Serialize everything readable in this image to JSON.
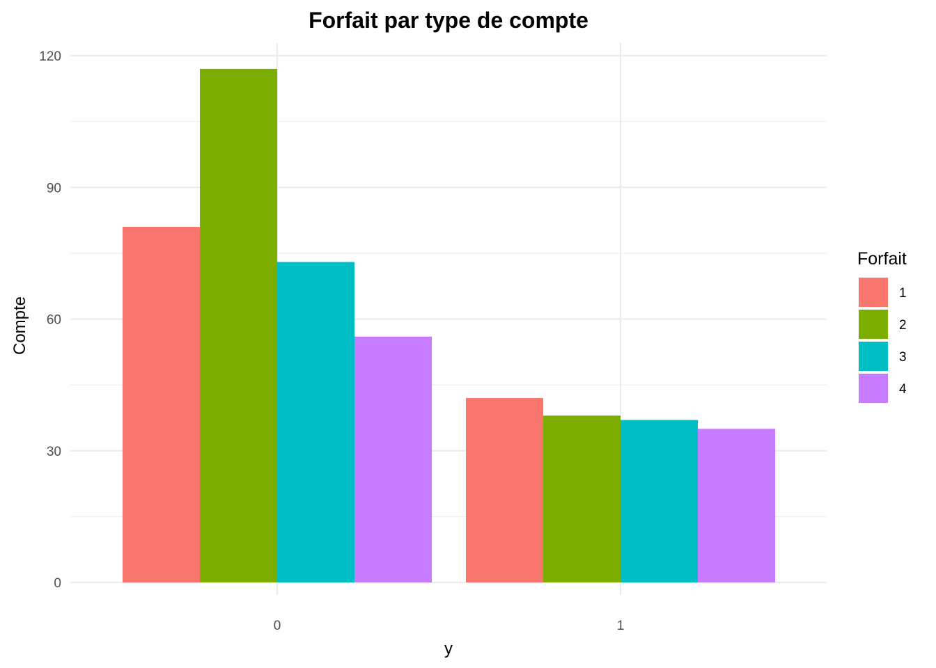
{
  "chart_data": {
    "type": "bar",
    "title": "Forfait par type de compte",
    "xlabel": "y",
    "ylabel": "Compte",
    "categories": [
      "0",
      "1"
    ],
    "series": [
      {
        "name": "1",
        "values": [
          81,
          42
        ]
      },
      {
        "name": "2",
        "values": [
          117,
          38
        ]
      },
      {
        "name": "3",
        "values": [
          73,
          37
        ]
      },
      {
        "name": "4",
        "values": [
          56,
          35
        ]
      }
    ],
    "ylim": [
      0,
      120
    ],
    "yticks": [
      0,
      30,
      60,
      90,
      120
    ],
    "legend": {
      "title": "Forfait",
      "placement": "right"
    },
    "grid": true
  },
  "colors": {
    "series": [
      "#F8766D",
      "#7CAE00",
      "#00BFC4",
      "#C77CFF"
    ],
    "grid": "#ebebeb"
  }
}
